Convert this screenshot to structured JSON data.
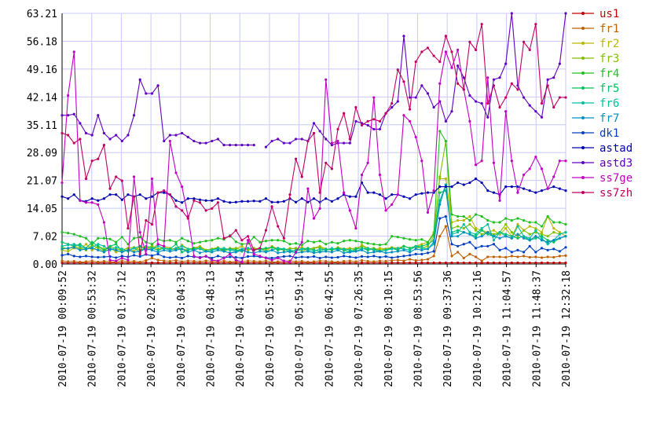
{
  "chart_data": {
    "type": "line",
    "title": "",
    "xlabel": "",
    "ylabel": "",
    "ylim": [
      0,
      63.21
    ],
    "grid": true,
    "legend_placement": "right",
    "y_ticks": [
      0.0,
      7.02,
      14.05,
      21.07,
      28.09,
      35.11,
      42.14,
      49.16,
      56.18,
      63.21
    ],
    "y_tick_labels": [
      "0.00",
      "7.02",
      "14.05",
      "21.07",
      "28.09",
      "35.11",
      "42.14",
      "49.16",
      "56.18",
      "63.21"
    ],
    "x_range": [
      "2010-07-19 00:09:52",
      "2010-07-19 12:32:18"
    ],
    "x_tick_labels": [
      "2010-07-19 00:09:52",
      "2010-07-19 00:53:32",
      "2010-07-19 01:37:12",
      "2010-07-19 02:20:53",
      "2010-07-19 03:04:33",
      "2010-07-19 03:48:13",
      "2010-07-19 04:31:54",
      "2010-07-19 05:15:34",
      "2010-07-19 05:59:14",
      "2010-07-19 06:42:55",
      "2010-07-19 07:26:35",
      "2010-07-19 08:10:15",
      "2010-07-19 08:53:56",
      "2010-07-19 09:37:36",
      "2010-07-19 10:21:16",
      "2010-07-19 11:04:57",
      "2010-07-19 11:48:37",
      "2010-07-19 12:32:18"
    ],
    "sample_count": 85,
    "series": [
      {
        "name": "us1",
        "color": "#c00000",
        "values": [
          0.3,
          0.3,
          0.3,
          0.3,
          0.3,
          0.3,
          0.3,
          0.3,
          0.3,
          0.3,
          0.3,
          0.3,
          0.3,
          0.3,
          0.3,
          0.3,
          0.3,
          0.3,
          0.3,
          0.3,
          0.3,
          0.3,
          0.3,
          0.3,
          0.3,
          0.3,
          0.3,
          0.3,
          0.3,
          0.3,
          0.3,
          0.3,
          0.3,
          0.3,
          0.3,
          0.3,
          0.3,
          0.3,
          0.3,
          0.3,
          0.3,
          0.3,
          0.3,
          0.3,
          0.3,
          0.3,
          0.3,
          0.3,
          0.3,
          0.3,
          0.3,
          0.3,
          0.3,
          0.3,
          0.3,
          0.3,
          0.3,
          0.3,
          0.3,
          0.3,
          0.3,
          0.3,
          0.3,
          0.3,
          0.3,
          0.3,
          0.3,
          0.3,
          0.3,
          0.3,
          0.3,
          0.3,
          0.3,
          0.3,
          0.3,
          0.3,
          0.3,
          0.3,
          0.3,
          0.3,
          0.3,
          0.3,
          0.3,
          0.3,
          0.3
        ]
      },
      {
        "name": "fr1",
        "color": "#c06000",
        "values": [
          0.8,
          0.6,
          0.7,
          0.5,
          0.6,
          0.8,
          0.5,
          0.7,
          0.6,
          0.5,
          0.8,
          0.6,
          0.7,
          0.5,
          0.9,
          1.5,
          1.0,
          0.8,
          0.7,
          0.9,
          0.6,
          0.8,
          0.7,
          0.6,
          0.8,
          0.7,
          0.6,
          0.8,
          0.5,
          0.7,
          0.6,
          0.8,
          0.7,
          0.6,
          0.8,
          0.5,
          0.6,
          0.7,
          0.8,
          0.6,
          0.7,
          0.5,
          0.6,
          0.8,
          0.7,
          0.6,
          0.5,
          0.7,
          0.8,
          0.6,
          0.9,
          0.7,
          0.6,
          0.8,
          0.7,
          0.9,
          1.0,
          0.8,
          1.2,
          0.9,
          1.0,
          1.2,
          2.0,
          7.0,
          9.5,
          2.0,
          3.0,
          1.5,
          2.5,
          1.8,
          0.8,
          1.8,
          1.8,
          1.8,
          1.7,
          2.0,
          1.8,
          2.0,
          1.7,
          1.8,
          1.6,
          1.8,
          1.7,
          2.0,
          2.1
        ]
      },
      {
        "name": "fr2",
        "color": "#b8b800",
        "values": [
          3.5,
          3.2,
          4.0,
          3.8,
          5.0,
          3.5,
          4.5,
          3.8,
          4.2,
          3.0,
          3.5,
          4.0,
          3.2,
          4.5,
          4.0,
          3.8,
          5.0,
          4.5,
          4.0,
          3.5,
          4.8,
          3.8,
          4.0,
          4.5,
          3.5,
          3.8,
          4.2,
          3.5,
          4.0,
          3.8,
          4.5,
          3.5,
          3.8,
          4.0,
          3.2,
          4.5,
          3.8,
          3.5,
          4.0,
          3.8,
          4.2,
          3.5,
          4.0,
          4.5,
          3.8,
          3.5,
          4.2,
          3.8,
          4.0,
          3.5,
          4.8,
          4.0,
          3.5,
          4.0,
          3.8,
          4.2,
          4.0,
          4.5,
          4.0,
          4.5,
          5.0,
          5.5,
          8.0,
          21.5,
          21.5,
          10.5,
          11.0,
          11.0,
          12.0,
          9.0,
          8.5,
          8.0,
          8.5,
          7.5,
          9.0,
          7.0,
          10.0,
          8.5,
          9.5,
          9.0,
          8.0,
          12.0,
          9.0,
          8.0,
          7.0
        ]
      },
      {
        "name": "fr3",
        "color": "#80c000",
        "values": [
          4.2,
          3.8,
          4.5,
          4.0,
          3.5,
          4.8,
          4.0,
          3.2,
          4.5,
          3.8,
          3.5,
          4.0,
          4.2,
          3.5,
          4.0,
          4.5,
          3.8,
          4.2,
          3.5,
          4.0,
          3.8,
          3.5,
          4.0,
          4.2,
          3.5,
          3.8,
          4.0,
          3.2,
          3.8,
          4.0,
          3.5,
          3.8,
          4.0,
          3.5,
          3.8,
          4.2,
          4.0,
          3.5,
          3.8,
          4.0,
          3.2,
          3.8,
          4.0,
          4.2,
          3.5,
          3.8,
          4.0,
          3.5,
          3.8,
          4.0,
          4.5,
          3.8,
          4.0,
          3.5,
          3.8,
          4.0,
          3.5,
          4.5,
          4.0,
          4.2,
          4.0,
          4.5,
          7.0,
          22.0,
          31.0,
          9.0,
          9.5,
          9.0,
          10.0,
          8.5,
          7.5,
          8.0,
          7.5,
          8.0,
          10.0,
          8.0,
          7.0,
          8.5,
          7.5,
          8.0,
          7.5,
          7.0,
          8.0,
          7.5,
          8.0
        ]
      },
      {
        "name": "fr4",
        "color": "#20c020",
        "values": [
          8.0,
          7.8,
          7.5,
          7.0,
          6.5,
          5.0,
          6.5,
          6.5,
          6.3,
          5.5,
          6.8,
          5.0,
          6.5,
          6.8,
          5.5,
          5.0,
          6.2,
          5.8,
          6.0,
          5.5,
          6.5,
          5.8,
          5.2,
          5.5,
          5.8,
          6.0,
          6.5,
          6.2,
          7.2,
          5.6,
          5.0,
          5.2,
          6.8,
          5.5,
          5.8,
          6.0,
          6.0,
          5.8,
          5.0,
          5.2,
          4.8,
          5.8,
          5.5,
          5.8,
          5.0,
          5.5,
          5.2,
          5.8,
          6.0,
          5.8,
          5.5,
          5.2,
          5.0,
          4.8,
          5.0,
          7.0,
          6.8,
          6.5,
          6.2,
          6.0,
          6.2,
          5.5,
          7.5,
          33.5,
          31.0,
          12.5,
          12.0,
          12.0,
          11.0,
          12.5,
          12.0,
          11.0,
          10.5,
          10.5,
          11.5,
          11.0,
          11.5,
          11.0,
          10.5,
          10.5,
          9.5,
          12.0,
          10.5,
          10.5,
          10.0
        ]
      },
      {
        "name": "fr5",
        "color": "#00c060",
        "values": [
          5.5,
          5.0,
          4.5,
          5.0,
          4.0,
          5.5,
          4.5,
          3.5,
          4.5,
          5.0,
          3.2,
          3.5,
          4.0,
          3.0,
          4.5,
          4.0,
          3.5,
          4.0,
          3.8,
          5.0,
          3.0,
          3.5,
          4.0,
          3.8,
          3.2,
          3.5,
          4.0,
          3.5,
          3.8,
          3.5,
          3.2,
          4.0,
          3.5,
          3.8,
          4.0,
          4.2,
          3.5,
          3.8,
          3.0,
          3.5,
          3.8,
          4.0,
          3.5,
          3.2,
          3.8,
          3.5,
          4.0,
          3.5,
          3.0,
          3.8,
          4.0,
          3.5,
          3.8,
          3.2,
          3.5,
          4.0,
          3.5,
          4.5,
          4.0,
          4.5,
          4.5,
          5.0,
          6.0,
          18.0,
          18.5,
          8.0,
          8.5,
          8.0,
          7.5,
          7.0,
          8.5,
          7.5,
          7.0,
          8.0,
          7.5,
          7.0,
          6.5,
          7.0,
          6.0,
          6.5,
          7.0,
          6.0,
          5.5,
          6.5,
          7.0
        ]
      },
      {
        "name": "fr6",
        "color": "#00c0a0",
        "values": [
          4.5,
          4.8,
          5.0,
          4.5,
          3.8,
          4.2,
          5.0,
          4.5,
          3.5,
          4.2,
          3.8,
          3.2,
          4.0,
          4.5,
          3.5,
          3.8,
          4.5,
          4.0,
          3.5,
          4.0,
          4.5,
          3.8,
          3.5,
          4.0,
          3.2,
          3.5,
          3.8,
          4.0,
          3.5,
          3.2,
          3.8,
          4.0,
          3.5,
          3.8,
          3.2,
          3.5,
          4.0,
          3.8,
          3.5,
          3.2,
          3.8,
          3.5,
          3.2,
          3.8,
          3.5,
          4.0,
          3.5,
          3.8,
          3.5,
          3.2,
          3.8,
          4.0,
          3.5,
          3.2,
          3.5,
          3.8,
          4.0,
          3.8,
          3.5,
          4.5,
          4.0,
          3.8,
          5.0,
          16.0,
          20.0,
          7.5,
          8.0,
          10.0,
          8.0,
          7.5,
          9.0,
          10.0,
          6.0,
          8.0,
          7.0,
          6.5,
          9.5,
          7.0,
          6.5,
          8.5,
          6.5,
          5.0,
          6.0,
          7.5,
          8.0
        ]
      },
      {
        "name": "fr7",
        "color": "#0090c0",
        "values": [
          3.8,
          4.0,
          4.2,
          3.5,
          3.8,
          4.0,
          3.5,
          3.0,
          3.8,
          3.5,
          3.0,
          3.5,
          3.0,
          3.2,
          3.8,
          3.5,
          3.0,
          3.5,
          3.2,
          3.5,
          3.8,
          3.0,
          3.5,
          2.8,
          3.2,
          3.0,
          3.5,
          3.2,
          2.8,
          3.0,
          3.5,
          3.0,
          2.8,
          3.2,
          3.0,
          3.5,
          2.8,
          3.0,
          3.2,
          2.8,
          3.0,
          3.2,
          2.8,
          3.0,
          3.2,
          3.0,
          3.5,
          2.8,
          3.0,
          3.2,
          3.5,
          2.8,
          3.0,
          3.2,
          2.8,
          3.0,
          3.2,
          3.5,
          3.0,
          3.8,
          3.5,
          3.8,
          5.5,
          15.0,
          20.0,
          7.0,
          7.0,
          8.0,
          7.5,
          6.5,
          7.0,
          8.0,
          7.0,
          6.5,
          7.0,
          6.5,
          7.5,
          6.5,
          6.0,
          7.0,
          6.0,
          5.5,
          6.0,
          6.5,
          7.0
        ]
      },
      {
        "name": "dk1",
        "color": "#0040c0",
        "values": [
          2.2,
          2.5,
          2.0,
          1.8,
          2.0,
          1.8,
          1.7,
          1.8,
          1.9,
          1.6,
          2.0,
          1.8,
          2.2,
          1.9,
          2.4,
          2.1,
          2.5,
          1.8,
          1.6,
          1.8,
          1.5,
          2.0,
          1.8,
          1.7,
          1.9,
          1.5,
          2.0,
          1.6,
          1.8,
          1.7,
          1.5,
          1.9,
          2.0,
          1.8,
          1.6,
          1.5,
          1.7,
          1.9,
          2.0,
          1.6,
          1.8,
          1.7,
          1.9,
          1.5,
          1.8,
          1.6,
          1.7,
          2.0,
          1.8,
          1.6,
          1.9,
          1.8,
          2.0,
          1.7,
          1.9,
          1.6,
          1.8,
          2.0,
          2.2,
          2.5,
          2.5,
          2.8,
          3.2,
          11.5,
          12.0,
          5.0,
          4.5,
          5.0,
          5.5,
          4.0,
          4.5,
          4.5,
          5.0,
          3.5,
          4.0,
          3.0,
          3.5,
          3.0,
          4.5,
          3.0,
          4.0,
          3.5,
          3.8,
          3.2,
          4.2
        ]
      },
      {
        "name": "astad",
        "color": "#0000b0",
        "values": [
          17.0,
          16.5,
          17.5,
          16.0,
          15.8,
          16.5,
          16.0,
          16.5,
          17.5,
          17.5,
          16.2,
          17.5,
          17.0,
          17.5,
          16.5,
          17.0,
          18.0,
          18.0,
          17.5,
          16.0,
          15.5,
          16.5,
          16.5,
          16.2,
          16.0,
          16.0,
          16.5,
          15.8,
          15.5,
          15.6,
          15.8,
          15.8,
          15.9,
          15.8,
          16.5,
          15.6,
          15.6,
          15.8,
          16.5,
          15.6,
          16.5,
          15.6,
          16.5,
          15.6,
          16.5,
          15.8,
          16.5,
          17.5,
          17.0,
          17.0,
          20.5,
          18.0,
          18.0,
          17.5,
          16.5,
          17.5,
          17.5,
          17.0,
          16.5,
          17.5,
          17.8,
          18.0,
          18.0,
          19.5,
          19.5,
          19.5,
          20.5,
          20.0,
          20.5,
          21.5,
          20.5,
          18.5,
          18.0,
          17.5,
          19.5,
          19.5,
          19.5,
          19.0,
          18.5,
          18.0,
          18.5,
          19.0,
          19.5,
          19.0,
          18.5
        ]
      },
      {
        "name": "astd3",
        "color": "#6000c0",
        "values": [
          37.5,
          37.5,
          37.8,
          35.5,
          33.0,
          32.5,
          37.5,
          33.0,
          31.5,
          32.5,
          31.0,
          32.5,
          37.5,
          46.5,
          43.0,
          43.0,
          45.0,
          31.0,
          32.5,
          32.5,
          33.0,
          32.0,
          31.0,
          30.5,
          30.5,
          31.0,
          31.5,
          30.0,
          30.0,
          30.0,
          30.0,
          30.0,
          30.0,
          null,
          29.5,
          31.0,
          31.5,
          30.5,
          30.5,
          31.5,
          31.5,
          31.0,
          35.5,
          33.5,
          31.5,
          30.0,
          30.5,
          30.5,
          30.5,
          36.0,
          35.5,
          35.0,
          34.0,
          34.0,
          38.0,
          39.5,
          41.0,
          57.5,
          42.0,
          42.0,
          45.0,
          43.0,
          39.5,
          41.0,
          36.0,
          38.5,
          50.0,
          47.0,
          42.5,
          41.0,
          40.5,
          37.0,
          46.5,
          47.0,
          50.5,
          63.21,
          45.0,
          42.0,
          40.0,
          38.5,
          37.0,
          46.5,
          47.0,
          50.5,
          63.21
        ]
      },
      {
        "name": "ss7ge",
        "color": "#c000c0",
        "values": [
          20.5,
          42.5,
          53.5,
          16.0,
          15.5,
          15.5,
          15.0,
          10.5,
          1.0,
          0.8,
          1.5,
          1.0,
          22.0,
          8.0,
          2.5,
          21.5,
          5.0,
          4.5,
          31.0,
          23.0,
          19.5,
          12.0,
          2.0,
          1.5,
          2.0,
          1.0,
          0.8,
          1.5,
          2.5,
          1.0,
          0.5,
          6.0,
          2.5,
          2.0,
          1.5,
          1.0,
          1.5,
          0.8,
          0.5,
          3.0,
          5.5,
          19.0,
          11.5,
          14.0,
          46.5,
          30.5,
          31.0,
          18.0,
          13.5,
          9.0,
          22.5,
          25.5,
          42.0,
          22.5,
          13.5,
          15.0,
          17.5,
          37.5,
          36.0,
          32.0,
          26.0,
          13.0,
          18.5,
          45.5,
          53.5,
          49.5,
          54.0,
          44.0,
          36.0,
          25.0,
          26.0,
          47.0,
          25.5,
          16.0,
          38.5,
          26.0,
          18.0,
          22.5,
          24.0,
          27.0,
          24.0,
          19.0,
          22.0,
          26.0,
          26.0
        ]
      },
      {
        "name": "ss7zh",
        "color": "#c00060",
        "values": [
          33.0,
          32.5,
          30.5,
          31.5,
          21.5,
          26.0,
          26.5,
          30.0,
          19.0,
          22.0,
          21.0,
          9.0,
          17.0,
          2.5,
          11.0,
          10.0,
          18.0,
          18.5,
          17.5,
          14.5,
          13.5,
          11.5,
          16.0,
          15.5,
          13.5,
          14.0,
          15.5,
          6.5,
          7.0,
          8.5,
          6.0,
          7.0,
          3.5,
          4.0,
          8.5,
          14.5,
          9.5,
          6.5,
          17.5,
          26.5,
          22.0,
          31.0,
          33.0,
          18.0,
          25.5,
          24.0,
          34.0,
          38.0,
          31.5,
          39.5,
          35.0,
          36.0,
          36.5,
          36.0,
          38.0,
          40.5,
          49.0,
          46.0,
          39.0,
          51.0,
          53.5,
          54.5,
          52.5,
          51.0,
          57.5,
          53.5,
          45.5,
          44.0,
          56.0,
          54.0,
          60.5,
          40.5,
          45.0,
          39.5,
          42.0,
          45.5,
          44.0,
          56.0,
          54.0,
          60.5,
          40.5,
          45.0,
          39.5,
          42.0,
          42.0
        ]
      }
    ]
  }
}
